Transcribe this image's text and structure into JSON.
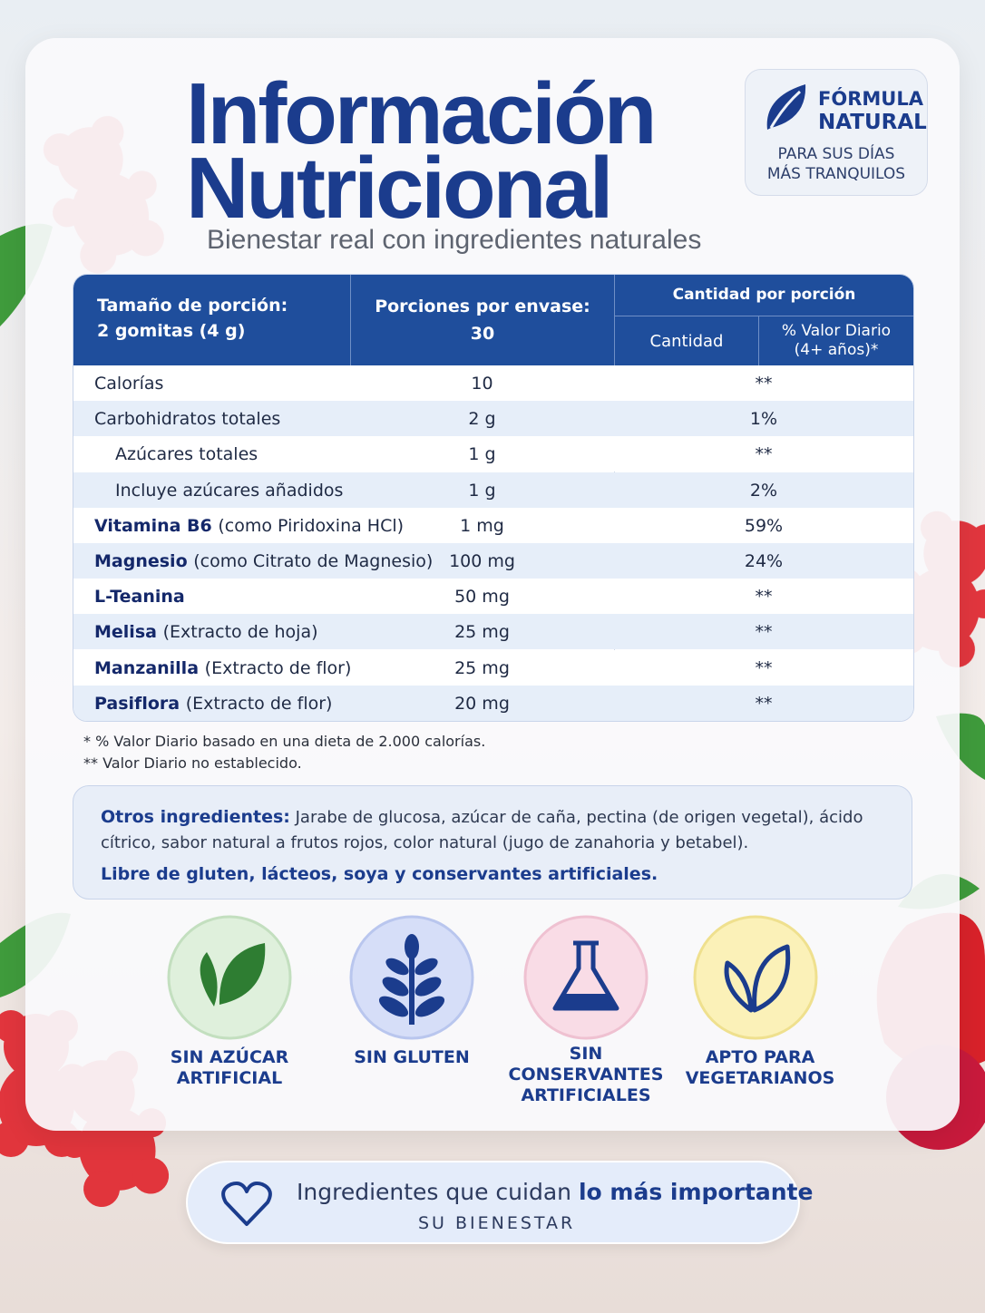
{
  "header": {
    "title_line1": "Información",
    "title_line2": "Nutricional",
    "subtitle": "Bienestar real con ingredientes naturales"
  },
  "badge": {
    "line1": "FÓRMULA",
    "line2": "NATURAL",
    "sub1": "PARA SUS DÍAS",
    "sub2": "MÁS TRANQUILOS"
  },
  "table": {
    "header": {
      "serving_label": "Tamaño de porción:",
      "serving_value": "2 gomitas (4 g)",
      "servings_label": "Porciones por envase:",
      "servings_value": "30",
      "amount_group": "Cantidad por porción",
      "col_amount": "Cantidad",
      "col_dv": "% Valor Diario",
      "col_dv_note": "(4+ años)*"
    },
    "rows": [
      {
        "name": "Calorías",
        "amount": "10",
        "dv": "**"
      },
      {
        "name": "Carbohidratos totales",
        "amount": "2 g",
        "dv": "1%"
      },
      {
        "name": "Azúcares totales",
        "amount": "1 g",
        "dv": "**",
        "indent": true
      },
      {
        "name": "Incluye azúcares añadidos",
        "amount": "1 g",
        "dv": "2%",
        "indent": true
      },
      {
        "name": "Vitamina B6",
        "detail": "(como Piridoxina HCl)",
        "amount": "1 mg",
        "dv": "59%",
        "emphasis": true
      },
      {
        "name": "Magnesio",
        "detail": "(como Citrato de Magnesio)",
        "amount": "100 mg",
        "dv": "24%",
        "emphasis": true
      },
      {
        "name": "L-Teanina",
        "amount": "50 mg",
        "dv": "**",
        "emphasis": true
      },
      {
        "name": "Melisa",
        "detail": "(Extracto de hoja)",
        "amount": "25 mg",
        "dv": "**",
        "emphasis": true
      },
      {
        "name": "Manzanilla",
        "detail": "(Extracto de flor)",
        "amount": "25 mg",
        "dv": "**",
        "emphasis": true
      },
      {
        "name": "Pasiflora",
        "detail": "(Extracto de flor)",
        "amount": "20 mg",
        "dv": "**",
        "emphasis": true
      }
    ]
  },
  "footnotes": [
    "* % Valor Diario basado en una dieta de 2.000 calorías.",
    "** Valor Diario no establecido."
  ],
  "ingredients": {
    "label": "Otros ingredientes:",
    "text": "Jarabe de glucosa, azúcar de caña, pectina (de origen vegetal), ácido cítrico, sabor natural a frutos rojos, color natural (jugo de zanahoria y betabel).",
    "claim": "Libre de gluten, lácteos, soya y conservantes artificiales."
  },
  "icons": [
    {
      "lines": [
        "SIN AZÚCAR",
        "ARTIFICIAL"
      ]
    },
    {
      "lines": [
        "SIN GLUTEN"
      ]
    },
    {
      "lines": [
        "SIN",
        "CONSERVANTES",
        "ARTIFICIALES"
      ]
    },
    {
      "lines": [
        "APTO PARA",
        "VEGETARIANOS"
      ]
    }
  ],
  "banner": {
    "text": "Ingredientes que cuidan",
    "bold": "lo más importante",
    "sub": "SU BIENESTAR"
  }
}
